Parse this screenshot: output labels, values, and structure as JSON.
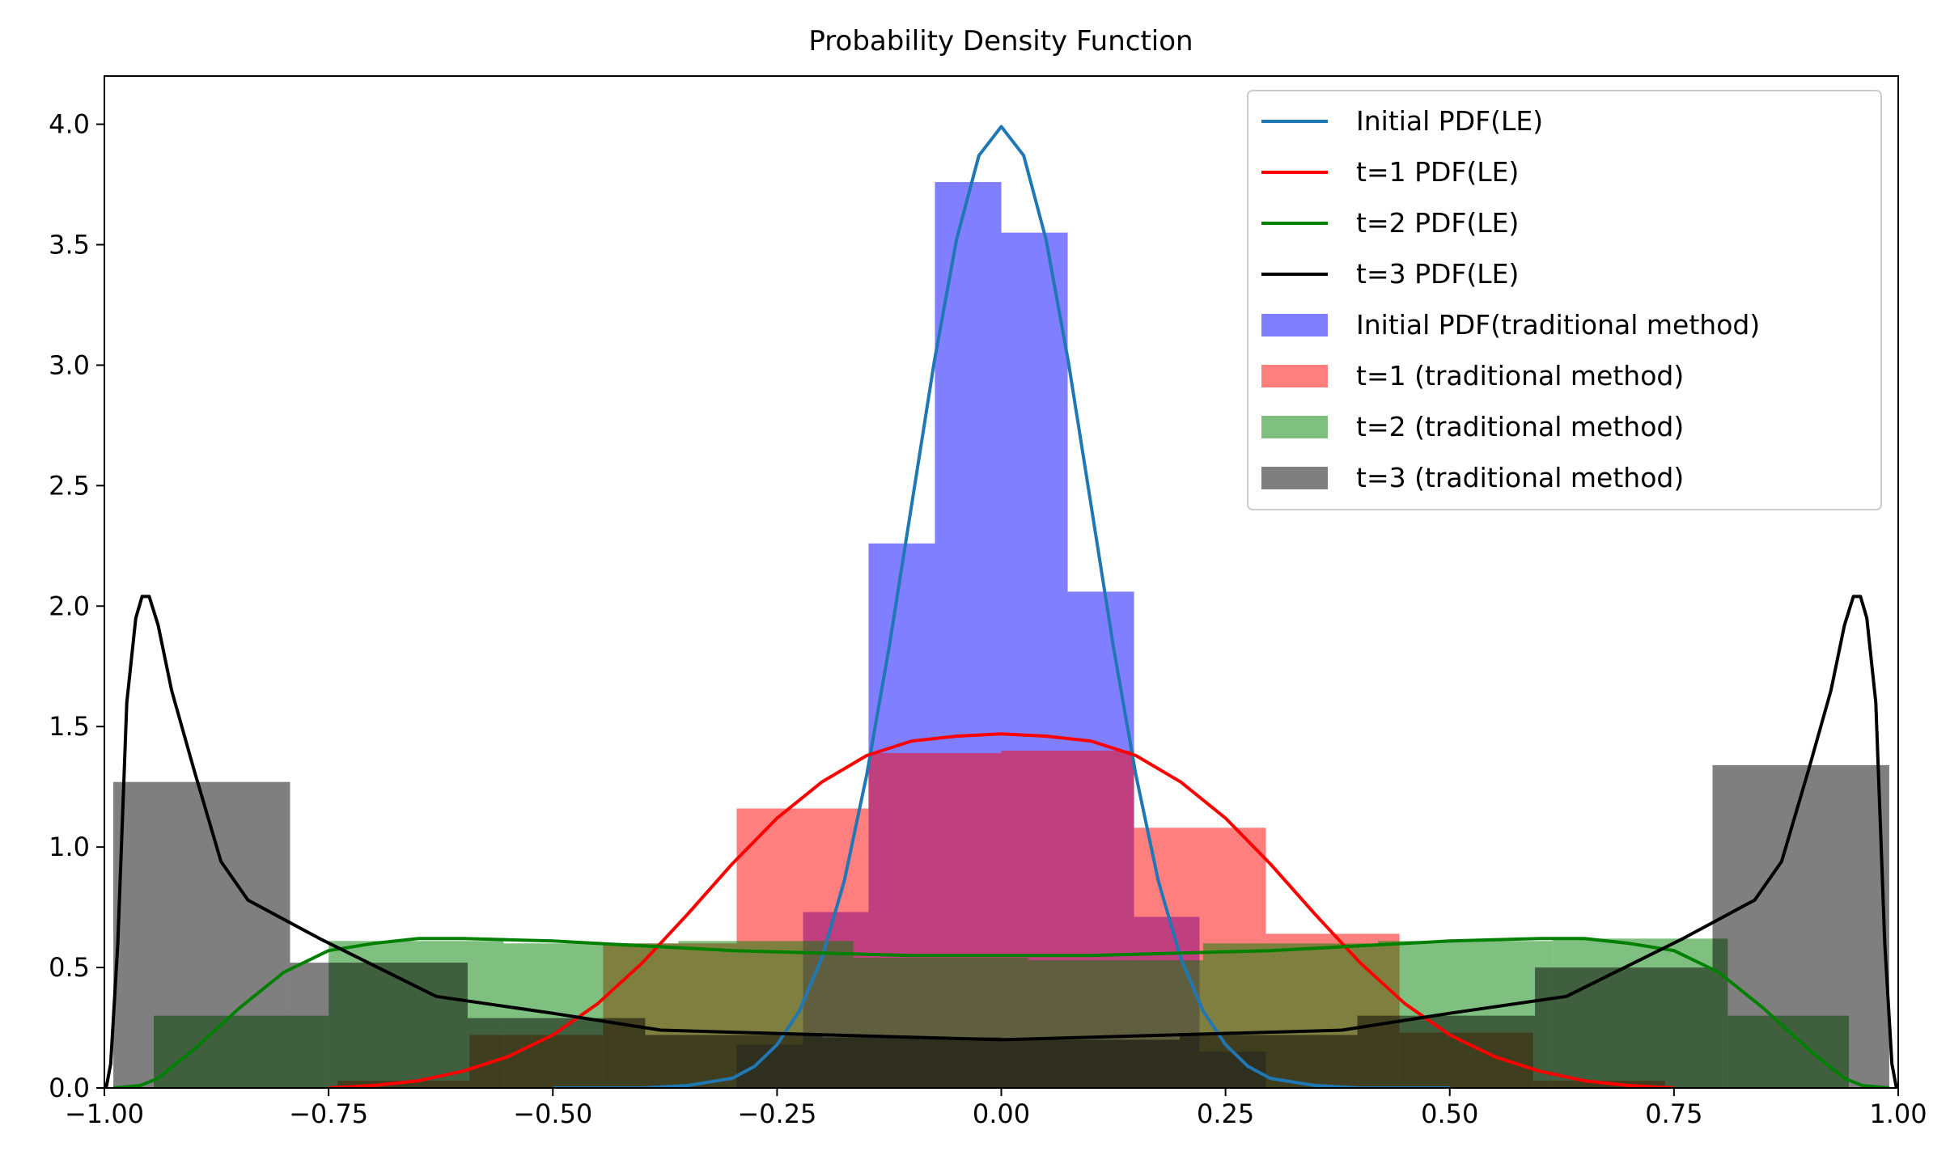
{
  "chart_data": {
    "type": "line",
    "title": "Probability Density Function",
    "xlabel": "",
    "ylabel": "",
    "xlim": [
      -1.0,
      1.0
    ],
    "ylim": [
      0.0,
      4.2
    ],
    "x_ticks": [
      -1.0,
      -0.75,
      -0.5,
      -0.25,
      0.0,
      0.25,
      0.5,
      0.75,
      1.0
    ],
    "x_tick_labels": [
      "−1.00",
      "−0.75",
      "−0.50",
      "−0.25",
      "0.00",
      "0.25",
      "0.50",
      "0.75",
      "1.00"
    ],
    "y_ticks": [
      0.0,
      0.5,
      1.0,
      1.5,
      2.0,
      2.5,
      3.0,
      3.5,
      4.0
    ],
    "y_tick_labels": [
      "0.0",
      "0.5",
      "1.0",
      "1.5",
      "2.0",
      "2.5",
      "3.0",
      "3.5",
      "4.0"
    ],
    "grid": false,
    "legend_position": "upper right",
    "histograms": [
      {
        "name": "Initial PDF(traditional method)",
        "color": "#0000ff",
        "alpha": 0.5,
        "edges": [
          -0.295,
          -0.221,
          -0.148,
          -0.074,
          0.0,
          0.074,
          0.148,
          0.221,
          0.295
        ],
        "heights": [
          0.18,
          0.73,
          2.26,
          3.76,
          3.55,
          2.06,
          0.71,
          0.15
        ]
      },
      {
        "name": "t=1 (traditional method)",
        "color": "#ff0000",
        "alpha": 0.5,
        "edges": [
          -0.74,
          -0.593,
          -0.444,
          -0.295,
          -0.148,
          0.0,
          0.148,
          0.295,
          0.444,
          0.593,
          0.74
        ],
        "heights": [
          0.03,
          0.22,
          0.6,
          1.16,
          1.39,
          1.4,
          1.08,
          0.64,
          0.23,
          0.03
        ]
      },
      {
        "name": "t=2 (traditional method)",
        "color": "#008000",
        "alpha": 0.5,
        "edges": [
          -0.945,
          -0.75,
          -0.555,
          -0.36,
          -0.165,
          0.03,
          0.225,
          0.42,
          0.615,
          0.81,
          0.945
        ],
        "heights": [
          0.3,
          0.61,
          0.6,
          0.61,
          0.54,
          0.53,
          0.6,
          0.61,
          0.62,
          0.3
        ]
      },
      {
        "name": "t=3 (traditional method)",
        "color": "#000000",
        "alpha": 0.5,
        "edges": [
          -0.99,
          -0.793,
          -0.595,
          -0.397,
          -0.199,
          0.0,
          0.199,
          0.397,
          0.595,
          0.793,
          0.99
        ],
        "heights": [
          1.27,
          0.52,
          0.29,
          0.22,
          0.21,
          0.2,
          0.22,
          0.3,
          0.5,
          1.34
        ]
      }
    ],
    "series": [
      {
        "name": "Initial PDF(LE)",
        "color": "#1f77b4",
        "x": [
          -0.5,
          -0.45,
          -0.4,
          -0.35,
          -0.3,
          -0.275,
          -0.25,
          -0.225,
          -0.2,
          -0.175,
          -0.15,
          -0.125,
          -0.1,
          -0.075,
          -0.05,
          -0.025,
          0.0,
          0.025,
          0.05,
          0.075,
          0.1,
          0.125,
          0.15,
          0.175,
          0.2,
          0.225,
          0.25,
          0.275,
          0.3,
          0.35,
          0.4,
          0.45,
          0.5
        ],
        "y": [
          0.0,
          0.0,
          0.0,
          0.01,
          0.04,
          0.09,
          0.18,
          0.32,
          0.54,
          0.86,
          1.3,
          1.83,
          2.42,
          3.01,
          3.52,
          3.87,
          3.99,
          3.87,
          3.52,
          3.01,
          2.42,
          1.83,
          1.3,
          0.86,
          0.54,
          0.32,
          0.18,
          0.09,
          0.04,
          0.01,
          0.0,
          0.0,
          0.0
        ]
      },
      {
        "name": "t=1 PDF(LE)",
        "color": "#ff0000",
        "x": [
          -0.75,
          -0.7,
          -0.65,
          -0.6,
          -0.55,
          -0.5,
          -0.45,
          -0.4,
          -0.35,
          -0.3,
          -0.25,
          -0.2,
          -0.15,
          -0.1,
          -0.05,
          0.0,
          0.05,
          0.1,
          0.15,
          0.2,
          0.25,
          0.3,
          0.35,
          0.4,
          0.45,
          0.5,
          0.55,
          0.6,
          0.65,
          0.7,
          0.75
        ],
        "y": [
          0.0,
          0.01,
          0.03,
          0.07,
          0.13,
          0.22,
          0.35,
          0.52,
          0.72,
          0.93,
          1.12,
          1.27,
          1.38,
          1.44,
          1.46,
          1.47,
          1.46,
          1.44,
          1.38,
          1.27,
          1.12,
          0.93,
          0.72,
          0.52,
          0.35,
          0.22,
          0.13,
          0.07,
          0.03,
          0.01,
          0.0
        ]
      },
      {
        "name": "t=2 PDF(LE)",
        "color": "#008000",
        "x": [
          -0.99,
          -0.96,
          -0.94,
          -0.9,
          -0.85,
          -0.8,
          -0.75,
          -0.7,
          -0.65,
          -0.6,
          -0.5,
          -0.4,
          -0.3,
          -0.2,
          -0.1,
          0.0,
          0.1,
          0.2,
          0.3,
          0.4,
          0.5,
          0.6,
          0.65,
          0.7,
          0.75,
          0.8,
          0.85,
          0.9,
          0.94,
          0.96,
          0.99
        ],
        "y": [
          0.0,
          0.01,
          0.04,
          0.16,
          0.33,
          0.48,
          0.57,
          0.6,
          0.62,
          0.62,
          0.61,
          0.59,
          0.57,
          0.56,
          0.55,
          0.55,
          0.55,
          0.56,
          0.57,
          0.59,
          0.61,
          0.62,
          0.62,
          0.6,
          0.57,
          0.48,
          0.33,
          0.16,
          0.04,
          0.01,
          0.0
        ]
      },
      {
        "name": "t=3 PDF(LE)",
        "color": "#000000",
        "x": [
          -0.998,
          -0.993,
          -0.985,
          -0.975,
          -0.965,
          -0.958,
          -0.95,
          -0.94,
          -0.925,
          -0.9,
          -0.87,
          -0.84,
          -0.76,
          -0.63,
          -0.5,
          -0.38,
          -0.19,
          0.0,
          0.19,
          0.38,
          0.5,
          0.63,
          0.76,
          0.84,
          0.87,
          0.9,
          0.925,
          0.94,
          0.95,
          0.958,
          0.965,
          0.975,
          0.985,
          0.993,
          0.998
        ],
        "y": [
          0.0,
          0.1,
          0.6,
          1.6,
          1.95,
          2.04,
          2.04,
          1.92,
          1.65,
          1.32,
          0.94,
          0.78,
          0.62,
          0.38,
          0.31,
          0.24,
          0.22,
          0.2,
          0.22,
          0.24,
          0.31,
          0.38,
          0.62,
          0.78,
          0.94,
          1.32,
          1.65,
          1.92,
          2.04,
          2.04,
          1.95,
          1.6,
          0.6,
          0.1,
          0.0
        ]
      }
    ]
  }
}
